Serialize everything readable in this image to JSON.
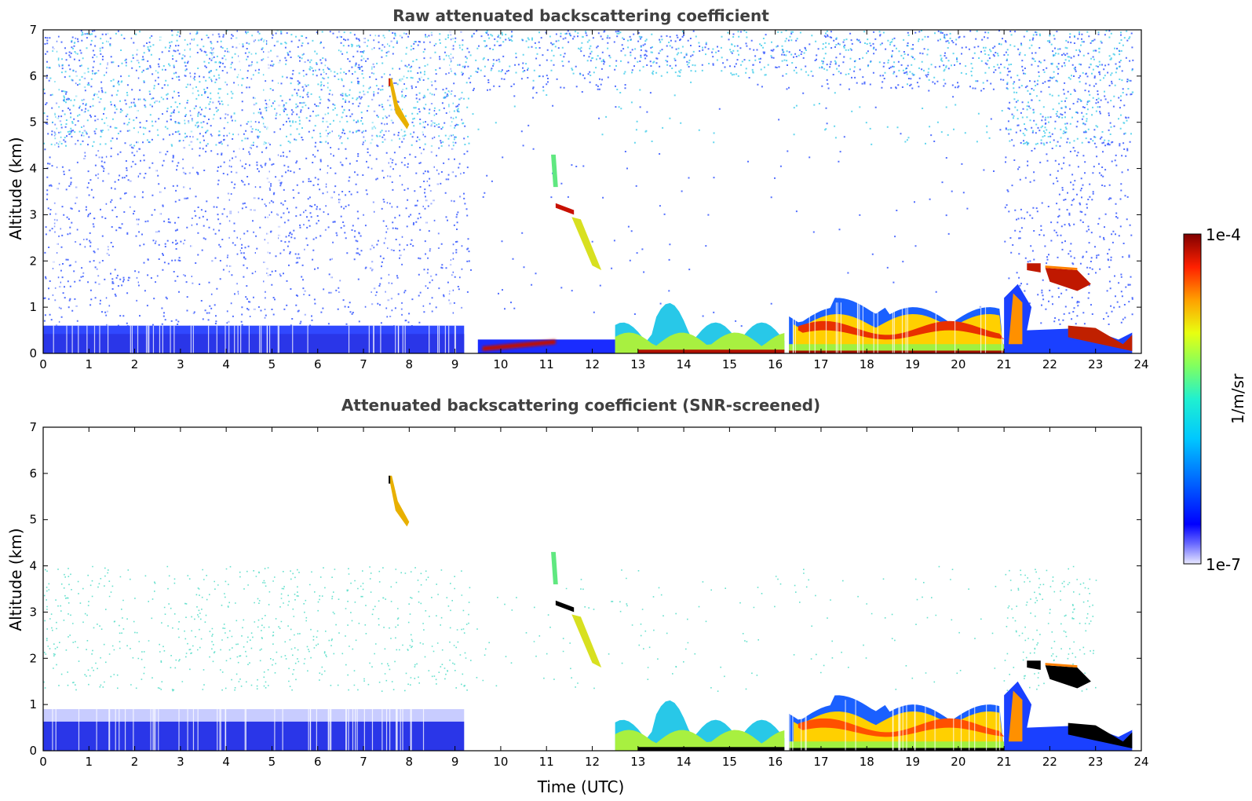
{
  "chart_data": [
    {
      "type": "heatmap",
      "title": "Raw attenuated backscattering coefficient",
      "xlabel": "",
      "ylabel": "Altitude (km)",
      "xlim": [
        0,
        24
      ],
      "ylim": [
        0,
        7
      ],
      "xticks": [
        0,
        1,
        2,
        3,
        4,
        5,
        6,
        7,
        8,
        9,
        10,
        11,
        12,
        13,
        14,
        15,
        16,
        17,
        18,
        19,
        20,
        21,
        22,
        23,
        24
      ],
      "yticks": [
        0,
        1,
        2,
        3,
        4,
        5,
        6,
        7
      ],
      "features": [
        {
          "name": "noise-background",
          "time": [
            0,
            23.8
          ],
          "alt": [
            0.6,
            7
          ],
          "level": "low-noise"
        },
        {
          "name": "boundary-layer-night",
          "time": [
            0,
            9.2
          ],
          "alt": [
            0,
            0.6
          ],
          "level": "low"
        },
        {
          "name": "cirrus-streak",
          "time": [
            7.5,
            8.0
          ],
          "alt": [
            4.9,
            6.0
          ],
          "level": "high"
        },
        {
          "name": "mid-cloud",
          "time": [
            11.2,
            11.6
          ],
          "alt": [
            3.0,
            3.3
          ],
          "level": "max"
        },
        {
          "name": "virga",
          "time": [
            11.6,
            12.2
          ],
          "alt": [
            1.8,
            2.9
          ],
          "level": "mid"
        },
        {
          "name": "aerosol-layer-morning",
          "time": [
            9.5,
            12.5
          ],
          "alt": [
            0,
            0.35
          ],
          "level": "high"
        },
        {
          "name": "convective-bl",
          "time": [
            12.5,
            16.2
          ],
          "alt": [
            0,
            1.2
          ],
          "level": "mid"
        },
        {
          "name": "afternoon-bl",
          "time": [
            16.3,
            21
          ],
          "alt": [
            0,
            1.2
          ],
          "level": "high"
        },
        {
          "name": "evening-clouds",
          "time": [
            21,
            23.8
          ],
          "alt": [
            0,
            2.0
          ],
          "level": "max"
        }
      ]
    },
    {
      "type": "heatmap",
      "title": "Attenuated backscattering coefficient (SNR-screened)",
      "xlabel": "Time (UTC)",
      "ylabel": "Altitude (km)",
      "xlim": [
        0,
        24
      ],
      "ylim": [
        0,
        7
      ],
      "xticks": [
        0,
        1,
        2,
        3,
        4,
        5,
        6,
        7,
        8,
        9,
        10,
        11,
        12,
        13,
        14,
        15,
        16,
        17,
        18,
        19,
        20,
        21,
        22,
        23,
        24
      ],
      "yticks": [
        0,
        1,
        2,
        3,
        4,
        5,
        6,
        7
      ],
      "features": [
        {
          "name": "sparse-noise",
          "time": [
            0,
            23
          ],
          "alt": [
            1.3,
            4.0
          ],
          "level": "sparse"
        },
        {
          "name": "boundary-layer-night",
          "time": [
            0,
            9.2
          ],
          "alt": [
            0,
            0.9
          ],
          "level": "low"
        },
        {
          "name": "cirrus-streak",
          "time": [
            7.5,
            8.0
          ],
          "alt": [
            4.8,
            5.9
          ],
          "level": "high"
        },
        {
          "name": "mid-cloud",
          "time": [
            11.2,
            11.6
          ],
          "alt": [
            3.0,
            3.3
          ],
          "level": "saturated"
        },
        {
          "name": "virga",
          "time": [
            11.6,
            12.2
          ],
          "alt": [
            1.8,
            2.9
          ],
          "level": "mid"
        },
        {
          "name": "convective-bl",
          "time": [
            12.5,
            16.2
          ],
          "alt": [
            0,
            1.2
          ],
          "level": "mid"
        },
        {
          "name": "afternoon-bl",
          "time": [
            16.3,
            21
          ],
          "alt": [
            0,
            1.2
          ],
          "level": "high"
        },
        {
          "name": "evening-clouds",
          "time": [
            21,
            23.8
          ],
          "alt": [
            0,
            2.0
          ],
          "level": "max"
        }
      ]
    }
  ],
  "colorbar": {
    "max_label": "1e-4",
    "min_label": "1e-7",
    "unit_label": "1/m/sr",
    "colors": [
      "#e8e8ff",
      "#4040ff",
      "#0000ff",
      "#0080ff",
      "#00d0ff",
      "#40ffc0",
      "#c0ff40",
      "#ffe000",
      "#ff8000",
      "#ff0000",
      "#800000"
    ]
  }
}
